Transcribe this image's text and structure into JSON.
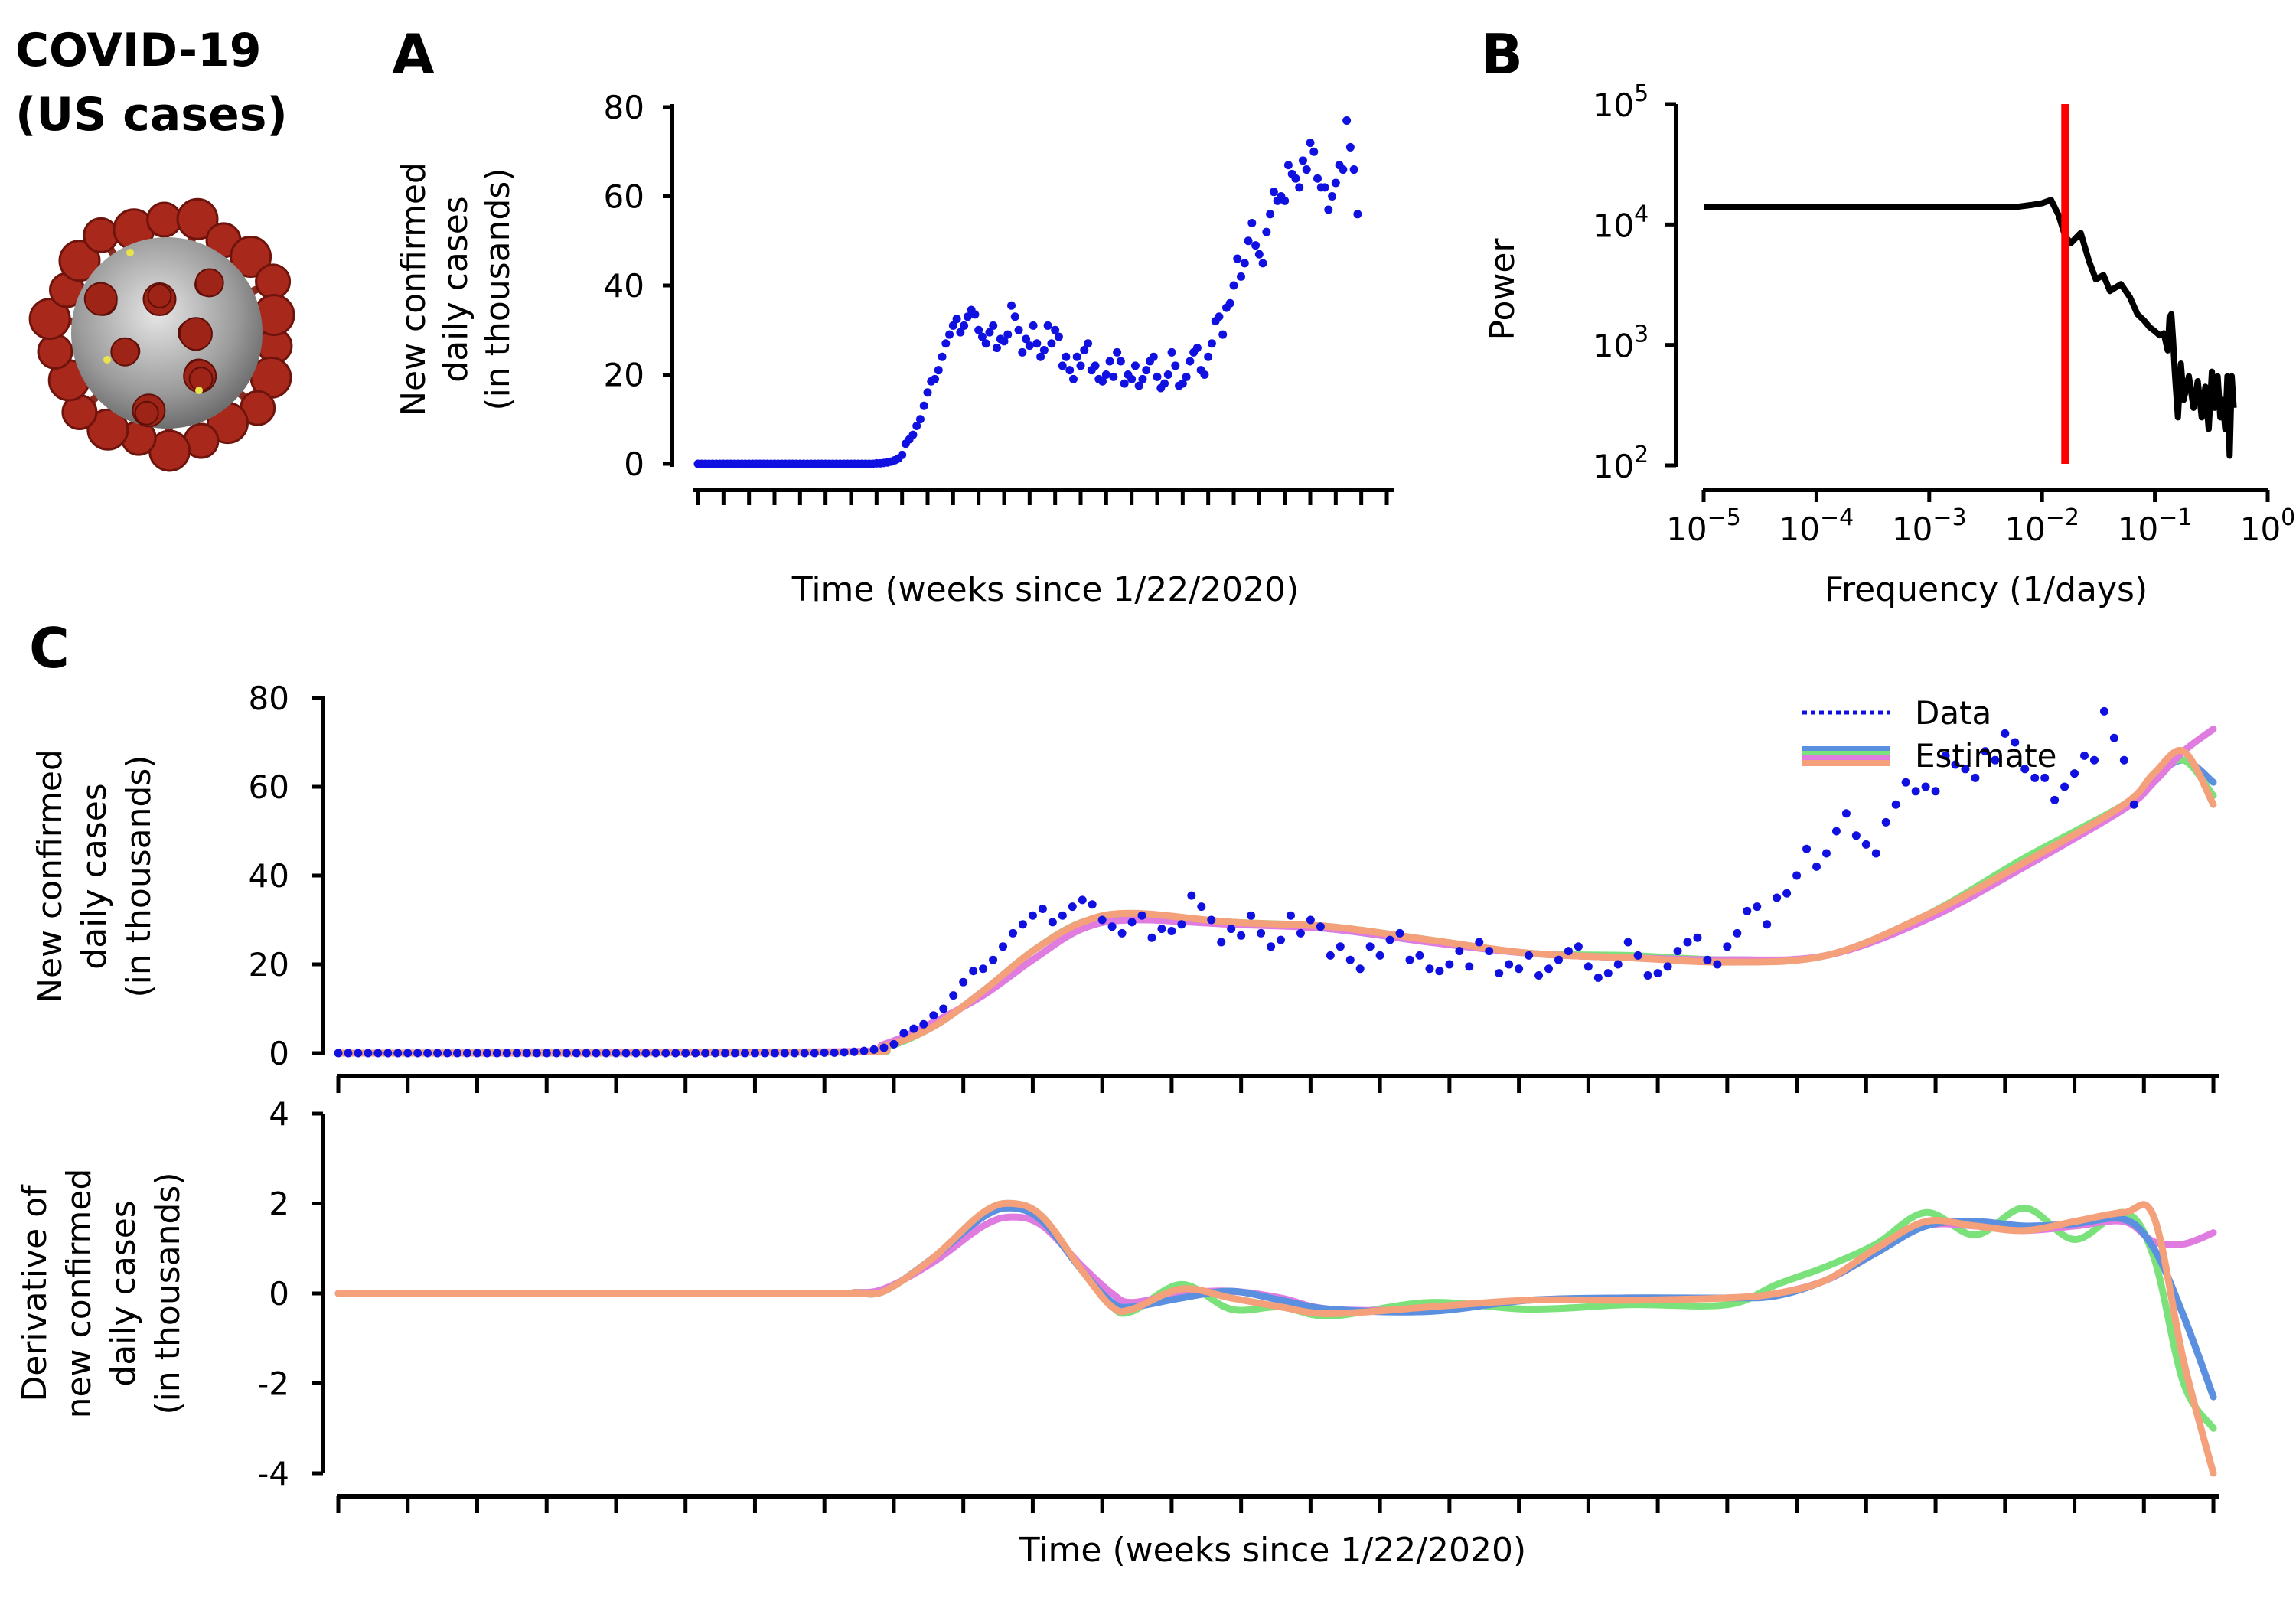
{
  "header": {
    "title_line1": "COVID-19",
    "title_line2": "(US cases)"
  },
  "panels": {
    "a": "A",
    "b": "B",
    "c": "C"
  },
  "colors": {
    "data": "#1010e0",
    "blue": "#5b8fe0",
    "green": "#7be27b",
    "violet": "#e07be0",
    "orange": "#f4a07a",
    "cutoff": "#ff0000",
    "spectrum": "#000000"
  },
  "chart_data": [
    {
      "id": "A",
      "type": "scatter",
      "title": "",
      "xlabel": "Time (weeks since 1/22/2020)",
      "ylabel": [
        "New confirmed",
        "daily cases",
        "(in thousands)"
      ],
      "ylim": [
        0,
        80
      ],
      "yticks": [
        0,
        20,
        40,
        60,
        80
      ],
      "xlim": [
        0,
        189
      ],
      "x_tick_step_days": 7,
      "series": [
        {
          "name": "Data",
          "x_start": 0,
          "x_step": 1,
          "values": [
            0,
            0,
            0,
            0,
            0,
            0,
            0,
            0,
            0,
            0,
            0,
            0,
            0,
            0,
            0,
            0,
            0,
            0,
            0,
            0,
            0,
            0,
            0,
            0,
            0,
            0,
            0,
            0,
            0,
            0,
            0,
            0,
            0,
            0,
            0,
            0,
            0,
            0,
            0,
            0,
            0,
            0,
            0,
            0,
            0,
            0,
            0,
            0,
            0,
            0.1,
            0.1,
            0.2,
            0.3,
            0.5,
            0.8,
            1.2,
            2.0,
            4.5,
            5.5,
            6.5,
            8.5,
            10,
            13,
            16,
            18.5,
            19,
            21,
            24,
            27,
            29,
            31,
            32.5,
            29.5,
            31,
            33,
            34.5,
            33.5,
            30,
            28.5,
            27,
            29.5,
            31,
            26,
            28,
            27.5,
            29,
            35.5,
            33,
            30,
            25,
            28,
            26.5,
            31,
            27,
            24,
            25.5,
            31,
            27,
            30,
            28.5,
            22,
            24,
            21,
            19,
            24,
            22,
            25.5,
            27,
            21,
            22,
            19,
            18.5,
            20,
            23,
            19.5,
            25,
            23,
            18,
            20,
            19,
            22,
            17.5,
            19,
            21,
            23,
            24,
            19.5,
            17,
            18,
            20,
            25,
            22,
            17.5,
            18,
            19.5,
            23,
            25,
            26,
            21,
            20,
            24,
            27,
            32,
            33,
            29,
            35,
            36,
            40,
            46,
            42,
            45,
            50,
            54,
            49,
            47,
            45,
            52,
            56,
            61,
            59,
            60,
            59,
            67,
            65,
            64,
            62,
            68,
            66,
            72,
            70,
            64,
            62,
            62,
            57,
            60,
            63,
            67,
            66,
            77,
            71,
            66,
            56
          ]
        }
      ]
    },
    {
      "id": "B",
      "type": "line",
      "xscale": "log",
      "yscale": "log",
      "xlabel": "Frequency (1/days)",
      "ylabel": "Power",
      "xlim": [
        1e-05,
        1
      ],
      "ylim": [
        100,
        100000
      ],
      "xticks": [
        "10^-5",
        "10^-4",
        "10^-3",
        "10^-2",
        "10^-1",
        "10^0"
      ],
      "yticks": [
        "10^2",
        "10^3",
        "10^4",
        "10^5"
      ],
      "cutoff_frequency": 0.016,
      "series": [
        {
          "name": "Power spectrum",
          "x": [
            1e-05,
            0.006,
            0.008,
            0.01,
            0.012,
            0.014,
            0.016,
            0.018,
            0.022,
            0.026,
            0.03,
            0.035,
            0.04,
            0.05,
            0.06,
            0.07,
            0.08,
            0.09,
            0.1,
            0.11,
            0.12,
            0.13,
            0.135,
            0.14,
            0.145,
            0.15,
            0.16,
            0.17,
            0.18,
            0.2,
            0.22,
            0.24,
            0.26,
            0.28,
            0.3,
            0.32,
            0.34,
            0.36,
            0.38,
            0.4,
            0.42,
            0.44,
            0.46,
            0.48,
            0.5
          ],
          "values": [
            14000,
            14000,
            14500,
            15000,
            16000,
            12000,
            8000,
            7000,
            8500,
            5000,
            3500,
            3800,
            2800,
            3200,
            2500,
            1800,
            1600,
            1400,
            1300,
            1200,
            1250,
            900,
            1700,
            1800,
            1100,
            600,
            250,
            700,
            350,
            550,
            300,
            500,
            250,
            450,
            200,
            600,
            300,
            550,
            250,
            350,
            200,
            550,
            120,
            550,
            300
          ]
        }
      ]
    },
    {
      "id": "C-top",
      "type": "line",
      "xlabel": "",
      "ylabel": [
        "New confirmed",
        "daily cases",
        "(in thousands)"
      ],
      "ylim": [
        0,
        80
      ],
      "yticks": [
        0,
        20,
        40,
        60,
        80
      ],
      "xlim": [
        0,
        190
      ],
      "x_tick_step_days": 7,
      "legend": {
        "position": "top-right",
        "entries": [
          "Data",
          "Estimate"
        ]
      },
      "data_series": "same values as panel A",
      "series": [
        {
          "name": "Estimate (blue)",
          "x": [
            0,
            50,
            55,
            60,
            65,
            70,
            75,
            80,
            90,
            100,
            110,
            120,
            130,
            140,
            150,
            160,
            170,
            180,
            183,
            186,
            189
          ],
          "values": [
            0,
            0.2,
            1.5,
            6,
            14,
            23,
            29.5,
            31,
            29.5,
            28,
            25,
            22.5,
            21.5,
            21,
            22,
            31,
            43,
            56,
            62,
            66,
            61
          ]
        },
        {
          "name": "Estimate (green)",
          "x": [
            0,
            50,
            55,
            60,
            65,
            70,
            75,
            80,
            90,
            100,
            110,
            120,
            130,
            140,
            150,
            160,
            170,
            180,
            183,
            186,
            189
          ],
          "values": [
            0,
            0.2,
            1.2,
            6,
            14,
            23,
            29.5,
            31,
            29.5,
            28.5,
            25.5,
            22.5,
            22,
            21,
            22,
            31,
            44,
            56,
            62,
            66,
            58
          ]
        },
        {
          "name": "Estimate (violet)",
          "x": [
            0,
            50,
            55,
            60,
            65,
            70,
            75,
            80,
            90,
            100,
            110,
            120,
            130,
            140,
            150,
            160,
            170,
            180,
            183,
            186,
            189
          ],
          "values": [
            0,
            0.3,
            2,
            7,
            13,
            21,
            28,
            30,
            29,
            28,
            25,
            22.5,
            21.5,
            21,
            22,
            30,
            42,
            55,
            61,
            68,
            73
          ]
        },
        {
          "name": "Estimate (orange)",
          "x": [
            0,
            50,
            55,
            60,
            65,
            70,
            75,
            80,
            90,
            100,
            110,
            120,
            130,
            140,
            150,
            160,
            170,
            180,
            183,
            186,
            189
          ],
          "values": [
            0,
            0.2,
            1.5,
            6,
            14,
            23,
            29.5,
            31.5,
            29.5,
            28.5,
            25.5,
            22.5,
            21.5,
            20.5,
            22,
            31,
            43,
            56,
            63,
            68,
            56
          ]
        }
      ]
    },
    {
      "id": "C-bottom",
      "type": "line",
      "xlabel": "Time (weeks since 1/22/2020)",
      "ylabel": [
        "Derivative of",
        "new confirmed",
        "daily cases",
        "(in thousands)"
      ],
      "ylim": [
        -4,
        4
      ],
      "yticks": [
        -4,
        -2,
        0,
        2,
        4
      ],
      "ytick_labels": [
        "-4",
        "-2",
        "0",
        "2",
        "4"
      ],
      "xlim": [
        0,
        190
      ],
      "x_tick_step_days": 7,
      "series": [
        {
          "name": "Derivative (blue)",
          "x": [
            0,
            50,
            52,
            55,
            60,
            65,
            68,
            71,
            75,
            78,
            80,
            85,
            90,
            95,
            100,
            110,
            120,
            130,
            140,
            145,
            150,
            155,
            160,
            165,
            170,
            175,
            180,
            183,
            186,
            189
          ],
          "values": [
            0,
            0,
            0.02,
            0.05,
            0.8,
            1.7,
            1.9,
            1.6,
            0.5,
            -0.2,
            -0.3,
            -0.1,
            0.05,
            -0.15,
            -0.35,
            -0.4,
            -0.15,
            -0.1,
            -0.1,
            -0.05,
            0.3,
            0.9,
            1.5,
            1.6,
            1.5,
            1.55,
            1.65,
            1.0,
            -0.5,
            -2.3
          ]
        },
        {
          "name": "Derivative (green)",
          "x": [
            0,
            50,
            52,
            55,
            60,
            65,
            68,
            71,
            75,
            78,
            80,
            85,
            90,
            95,
            100,
            110,
            120,
            130,
            140,
            145,
            150,
            155,
            160,
            165,
            170,
            175,
            180,
            183,
            186,
            189
          ],
          "values": [
            0,
            0,
            0.02,
            0.05,
            0.8,
            1.8,
            2.0,
            1.7,
            0.5,
            -0.3,
            -0.4,
            0.2,
            -0.35,
            -0.3,
            -0.5,
            -0.2,
            -0.35,
            -0.25,
            -0.25,
            0.2,
            0.6,
            1.1,
            1.8,
            1.3,
            1.9,
            1.2,
            1.8,
            0.8,
            -2.0,
            -3.0
          ]
        },
        {
          "name": "Derivative (violet)",
          "x": [
            0,
            50,
            52,
            55,
            60,
            65,
            68,
            71,
            75,
            78,
            80,
            85,
            90,
            95,
            100,
            110,
            120,
            130,
            140,
            145,
            150,
            155,
            160,
            165,
            170,
            175,
            180,
            183,
            186,
            189
          ],
          "values": [
            0,
            0,
            0.02,
            0.1,
            0.7,
            1.5,
            1.7,
            1.5,
            0.6,
            0.0,
            -0.2,
            0.0,
            0.05,
            -0.1,
            -0.35,
            -0.35,
            -0.15,
            -0.1,
            -0.1,
            0.0,
            0.3,
            0.9,
            1.5,
            1.5,
            1.4,
            1.5,
            1.6,
            1.15,
            1.1,
            1.35
          ]
        },
        {
          "name": "Derivative (orange)",
          "x": [
            0,
            50,
            52,
            55,
            60,
            65,
            68,
            71,
            75,
            78,
            80,
            85,
            90,
            95,
            100,
            110,
            120,
            130,
            140,
            145,
            150,
            155,
            160,
            165,
            170,
            175,
            180,
            183,
            186,
            189
          ],
          "values": [
            0,
            0,
            0.02,
            0.05,
            0.8,
            1.8,
            2.0,
            1.7,
            0.5,
            -0.3,
            -0.35,
            0.1,
            -0.1,
            -0.3,
            -0.45,
            -0.3,
            -0.15,
            -0.15,
            -0.1,
            0.0,
            0.3,
            1.0,
            1.6,
            1.5,
            1.4,
            1.6,
            1.8,
            1.7,
            -1.5,
            -4.0
          ]
        }
      ]
    }
  ]
}
